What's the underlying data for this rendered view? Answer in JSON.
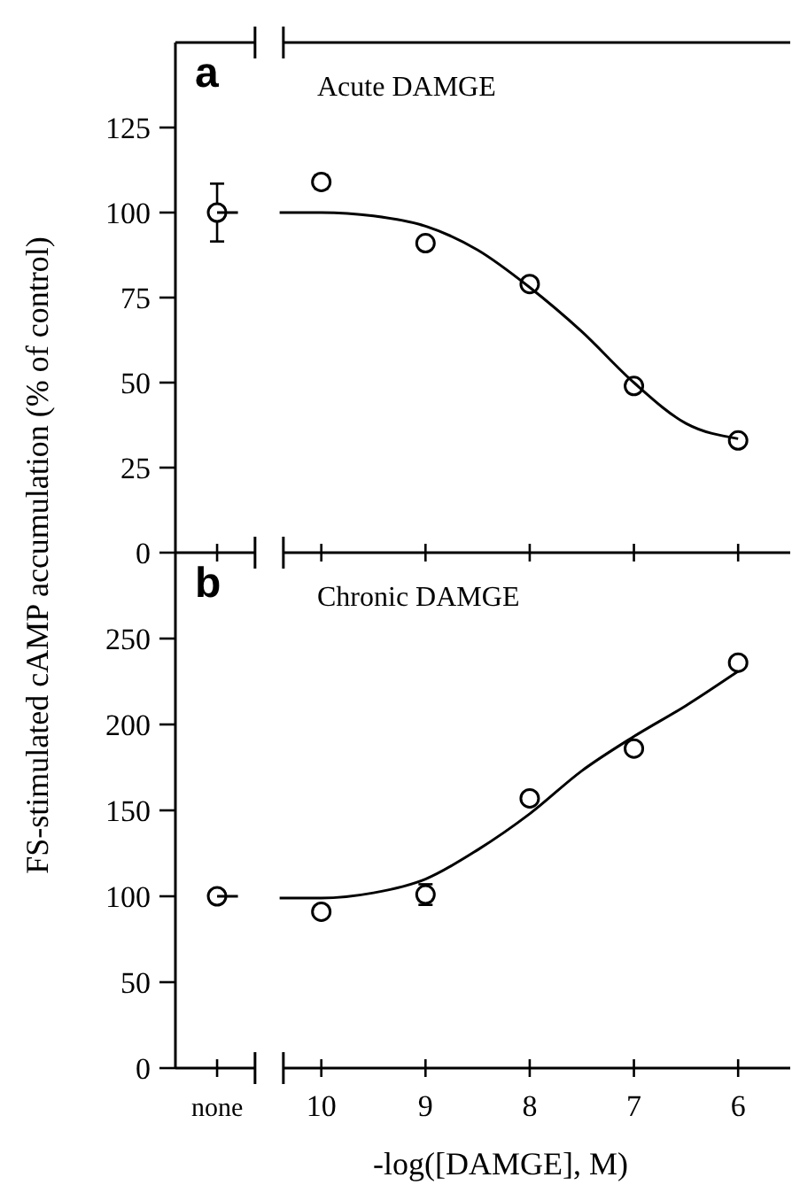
{
  "chart_data": [
    {
      "type": "scatter",
      "title": "a",
      "subtitle": "Acute DAMGE",
      "ylabel": "FS-stimulated cAMP accumulation (% of control)",
      "xlim": [
        11.4,
        5.5
      ],
      "xticks": [
        11,
        10,
        9,
        8,
        7,
        6
      ],
      "ylim": [
        0,
        150
      ],
      "yticks": [
        0,
        25,
        50,
        75,
        100,
        125
      ],
      "tick_labels": "y",
      "grid": false,
      "series": [
        {
          "type": "scatter",
          "marker": "circle",
          "color": "#000000",
          "x": [
            11,
            10,
            9,
            8,
            7,
            6
          ],
          "values": [
            100,
            109,
            91,
            79,
            49,
            33
          ],
          "errors": [
            8.5,
            2,
            null,
            null,
            null,
            null
          ]
        },
        {
          "type": "line",
          "marker": "none",
          "line_style": "solid",
          "color": "#000000",
          "x": [
            11,
            10.8,
            10.6,
            10.4,
            10,
            9.5,
            9,
            8.5,
            8,
            7.5,
            7,
            6.5,
            6
          ],
          "values": [
            100,
            100,
            null,
            100,
            100,
            99,
            96,
            89,
            78,
            65,
            50,
            38,
            33.5
          ]
        }
      ]
    },
    {
      "type": "scatter",
      "title": "b",
      "subtitle": "Chronic DAMGE",
      "xlabel": "-log([DAMGE], M)",
      "xlim": [
        11.4,
        5.5
      ],
      "xticks": [
        {
          "value": 11,
          "label": "none"
        },
        10,
        9,
        8,
        7,
        6
      ],
      "ylim": [
        0,
        300
      ],
      "yticks": [
        0,
        50,
        100,
        150,
        200,
        250
      ],
      "grid": false,
      "series": [
        {
          "type": "scatter",
          "marker": "circle",
          "color": "#000000",
          "x": [
            11,
            10,
            9,
            8,
            7,
            6
          ],
          "values": [
            100,
            91,
            101,
            157,
            186,
            236
          ],
          "errors": [
            null,
            null,
            6,
            null,
            null,
            null
          ]
        },
        {
          "type": "line",
          "marker": "none",
          "line_style": "solid",
          "color": "#000000",
          "x": [
            11,
            10.8,
            10.6,
            10.4,
            10,
            9.5,
            9,
            8.5,
            8,
            7.5,
            7,
            6.5,
            6
          ],
          "values": [
            100,
            100,
            null,
            99,
            99,
            102,
            110,
            127,
            148,
            173,
            193,
            211,
            231
          ]
        }
      ]
    }
  ]
}
